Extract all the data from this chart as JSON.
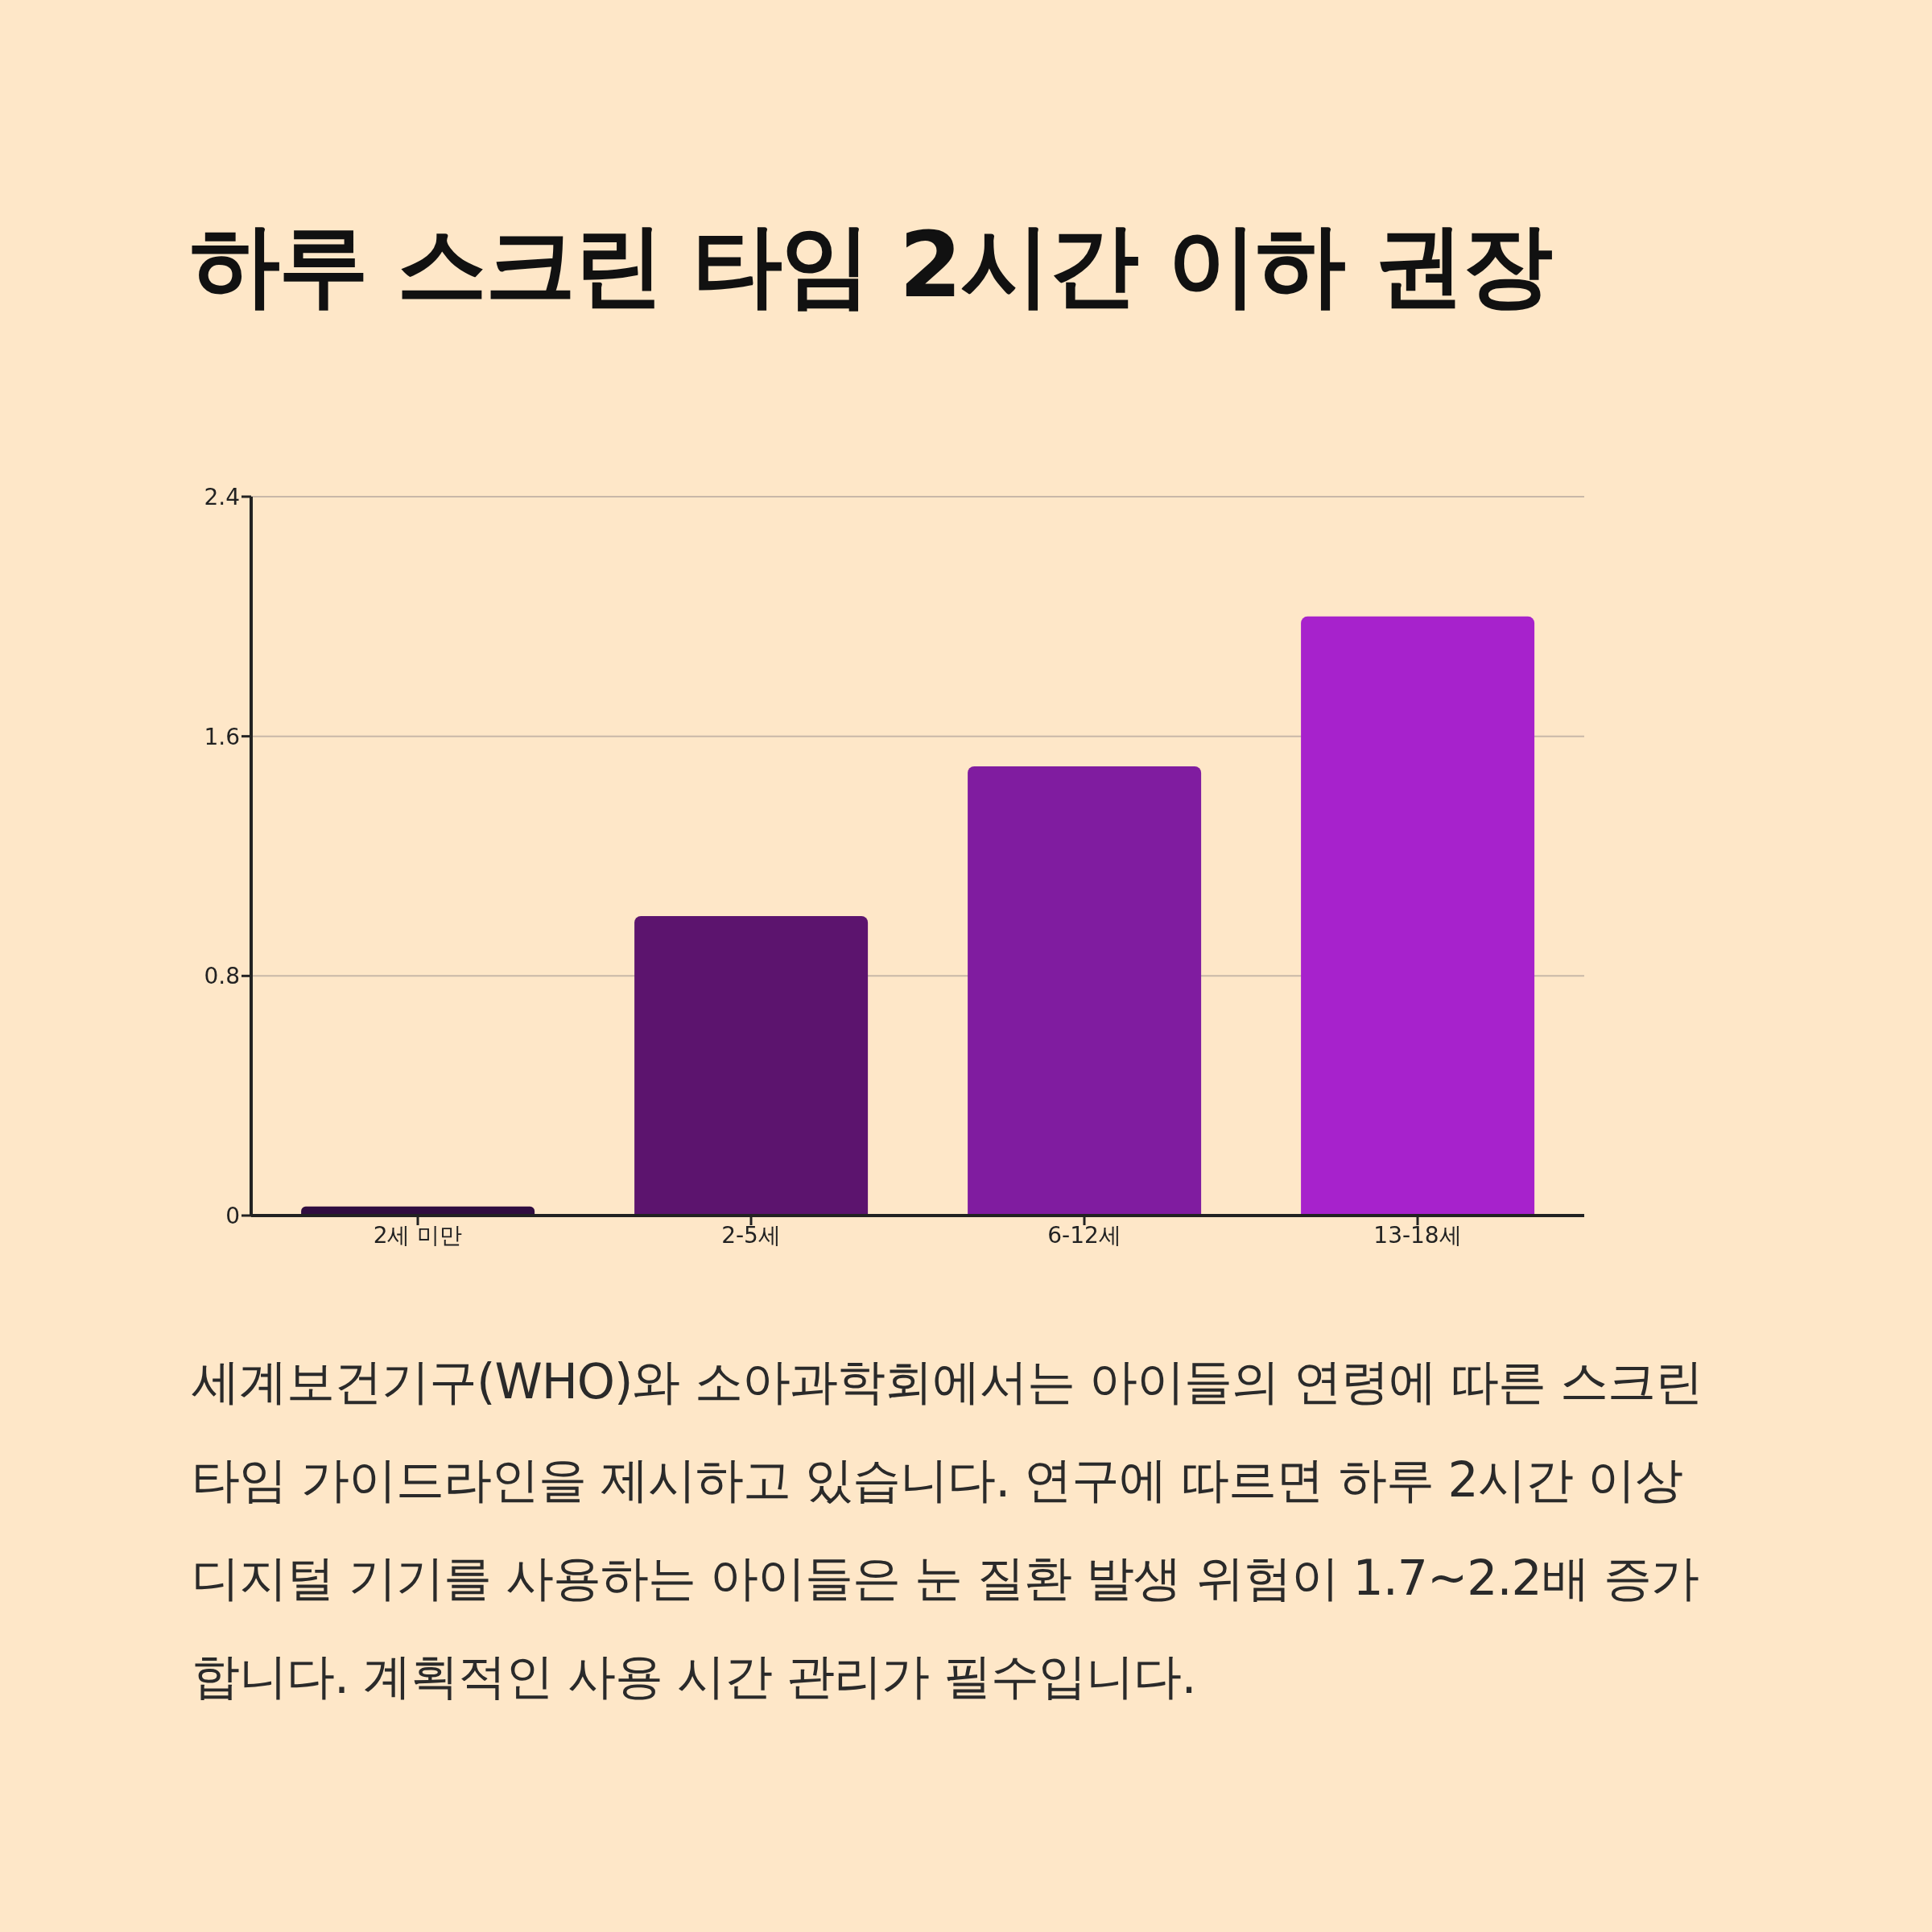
{
  "chart_data": {
    "type": "bar",
    "title": "하루 스크린 타임 2시간 이하 권장",
    "categories": [
      "2세 미만",
      "2-5세",
      "6-12세",
      "13-18세"
    ],
    "values": [
      0.03,
      1.0,
      1.5,
      2.0
    ],
    "colors": [
      "#300d40",
      "#5c146e",
      "#801ca0",
      "#a722cc"
    ],
    "ylim": [
      0,
      2.4
    ],
    "yticks": [
      0,
      0.8,
      1.6,
      2.4
    ],
    "grid": "y",
    "annotations": [
      "세계보건기구(WHO)와 소아과학회에서는 아이들의 연령에 따른 스크린 타임 가이드라인을 제시하고 있습니다. 연구에 따르면 하루 2시간 이상 디지털 기기를 사용하는 아이들은 눈 질환 발생 위험이 1.7~2.2배 증가합니다. 계획적인 사용 시간 관리가 필수입니다."
    ]
  }
}
